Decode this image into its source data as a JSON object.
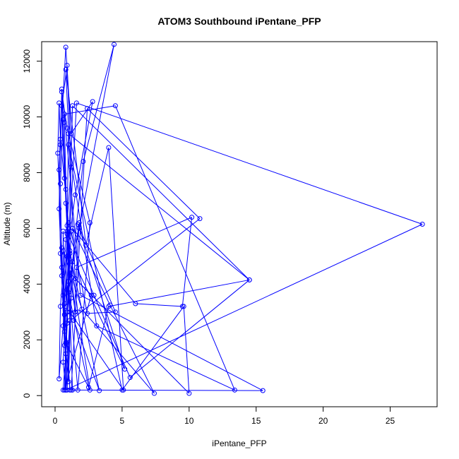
{
  "chart_data": {
    "type": "line",
    "title": "ATOM3 Southbound iPentane_PFP",
    "xlabel": "iPentane_PFP",
    "ylabel": "Altitude (m)",
    "xlim": [
      -1.0,
      28.5
    ],
    "ylim": [
      -400,
      12700
    ],
    "x_ticks": [
      0,
      5,
      10,
      15,
      20,
      25
    ],
    "x_tick_labels": [
      "0",
      "5",
      "10",
      "15",
      "20",
      "25"
    ],
    "y_ticks": [
      0,
      2000,
      4000,
      6000,
      8000,
      10000,
      12000
    ],
    "y_tick_labels": [
      "0",
      "2000",
      "4000",
      "6000",
      "8000",
      "10000",
      "12000"
    ],
    "grid": false,
    "legend": "none",
    "series_color": "#0000ff",
    "series": [
      {
        "x": [
          0.6,
          0.8,
          0.9,
          1.1,
          0.7,
          0.5,
          0.9,
          1.2,
          0.8,
          0.4,
          0.3,
          0.6,
          0.9,
          1.5,
          2.8,
          1.2,
          0.8,
          0.4,
          0.3,
          0.5,
          0.7,
          0.6,
          1.0,
          0.4,
          0.3,
          0.2,
          0.5,
          0.7,
          0.9,
          1.3,
          2.1,
          4.4,
          1.8,
          0.9,
          0.6,
          0.8,
          1.1,
          0.9,
          0.7,
          0.5,
          0.8,
          1.0,
          1.7,
          2.6,
          0.9,
          0.5,
          0.3,
          0.4,
          0.7,
          1.0,
          1.2,
          0.8,
          0.6,
          0.4,
          0.5,
          0.9,
          1.1,
          0.7,
          0.6,
          0.8
        ],
        "y": [
          200,
          1500,
          3000,
          5200,
          7800,
          10400,
          11850,
          8200,
          5600,
          3200,
          600,
          2500,
          5000,
          7200,
          10550,
          9400,
          12500,
          9000,
          6700,
          4300,
          1800,
          3600,
          6200,
          9200,
          10500,
          8700,
          5300,
          2900,
          200,
          4800,
          8400,
          12600,
          6000,
          3800,
          1200,
          200,
          2700,
          5800,
          9800,
          11000,
          7400,
          4100,
          200,
          6200,
          9600,
          10900,
          8100,
          5100,
          2300,
          500,
          3500,
          6900,
          9900,
          7600,
          4600,
          1900,
          200,
          3300,
          5900,
          200
        ]
      },
      {
        "x": [
          27.4,
          1.6,
          0.8,
          1.0,
          14.5,
          1.3,
          0.9,
          10.8,
          2.4,
          1.2,
          15.5,
          1.9,
          0.7,
          4.5,
          13.4,
          3.1,
          1.0,
          5.0,
          9.6,
          10.0,
          1.5,
          0.8,
          2.3,
          4.0,
          5.1,
          1.1,
          0.6,
          2.0,
          7.4,
          4.1,
          1.3,
          6.0,
          9.5,
          10.2,
          1.6,
          5.2,
          1.7,
          4.5,
          2.4,
          1.2,
          0.7,
          2.7,
          1.1,
          1.5,
          0.9,
          2.9,
          5.6,
          14.5,
          4.0,
          2.5,
          1.0,
          1.8,
          1.4,
          3.3,
          1.1,
          0.8,
          2.6,
          1.7,
          0.9,
          1.3
        ],
        "y": [
          6150,
          10500,
          3200,
          9400,
          4150,
          10400,
          2600,
          6350,
          10300,
          200,
          180,
          3600,
          10100,
          10400,
          200,
          2500,
          9000,
          200,
          3200,
          80,
          4200,
          11700,
          5400,
          8900,
          200,
          3000,
          5200,
          3100,
          80,
          3250,
          6000,
          3300,
          3200,
          6400,
          4600,
          950,
          6150,
          3000,
          2950,
          5900,
          200,
          3600,
          4400,
          3000,
          5900,
          3600,
          650,
          4150,
          3200,
          300,
          3700,
          6200,
          2700,
          180,
          5100,
          1900,
          200,
          3000,
          6100,
          200
        ]
      }
    ]
  }
}
